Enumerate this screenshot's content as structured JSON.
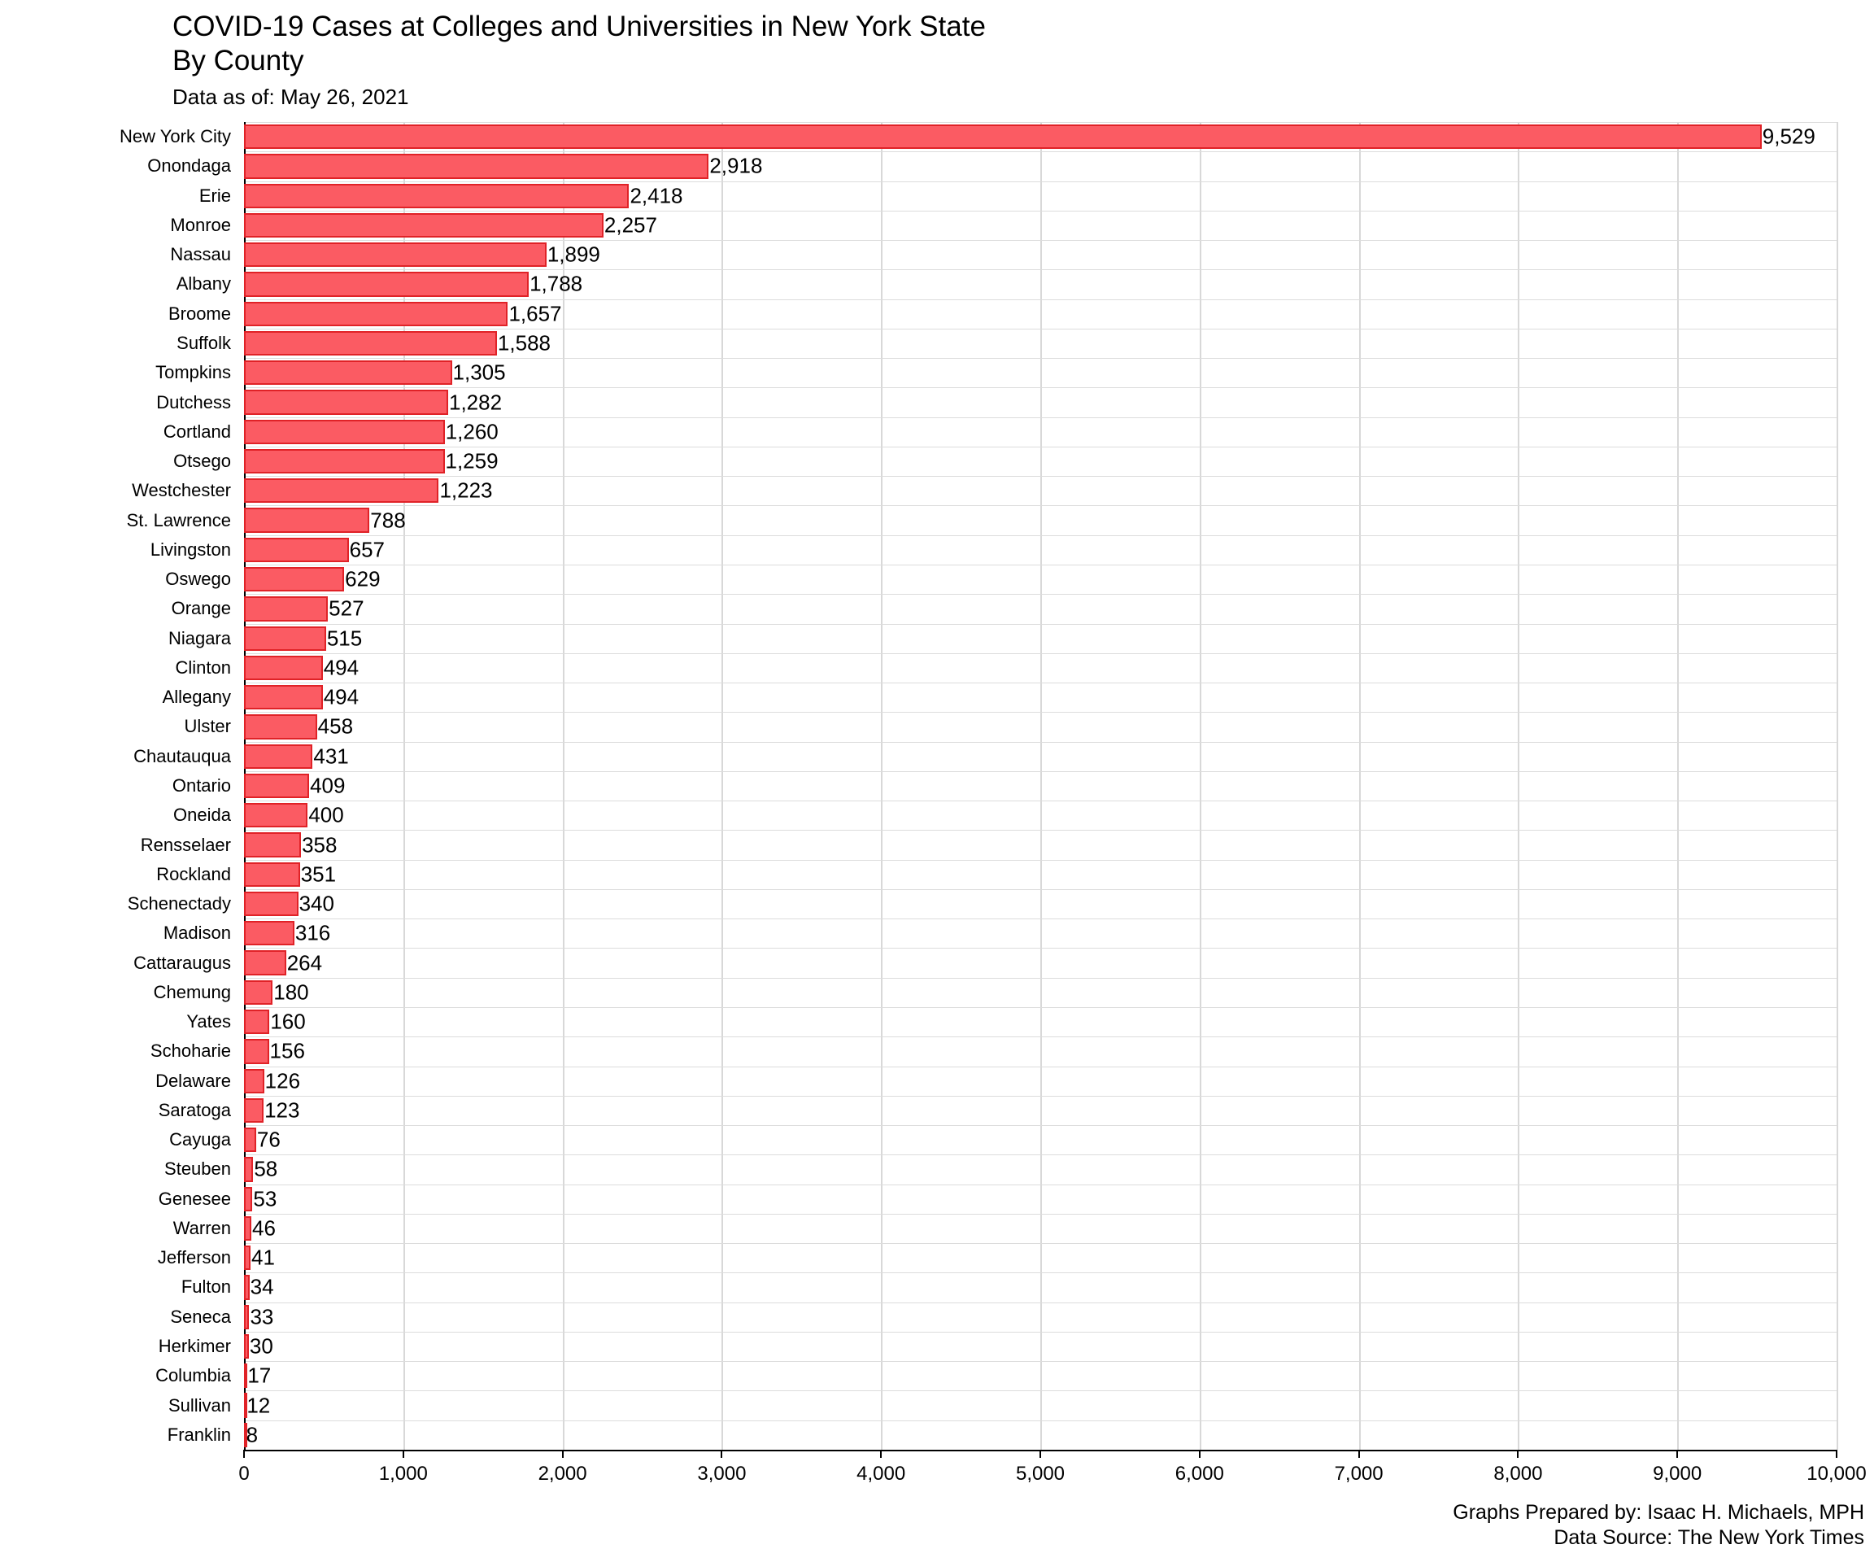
{
  "header": {
    "title": "COVID-19 Cases at Colleges and Universities in New York State",
    "subtitle": "By County",
    "data_as_of": "Data as of: May 26, 2021"
  },
  "footer": {
    "prepared_by": "Graphs Prepared by: Isaac H. Michaels, MPH",
    "source": "Data Source: The New York Times"
  },
  "chart_data": {
    "type": "bar",
    "orientation": "horizontal",
    "title": "COVID-19 Cases at Colleges and Universities in New York State",
    "subtitle": "By County",
    "note": "Data as of: May 26, 2021",
    "xlabel": "",
    "ylabel": "",
    "xlim": [
      0,
      10000
    ],
    "x_ticks": [
      0,
      1000,
      2000,
      3000,
      4000,
      5000,
      6000,
      7000,
      8000,
      9000,
      10000
    ],
    "grid": true,
    "legend": "none",
    "value_labels": true,
    "bar_fill": "#fb5b63",
    "bar_border": "#e02227",
    "categories": [
      "New York City",
      "Onondaga",
      "Erie",
      "Monroe",
      "Nassau",
      "Albany",
      "Broome",
      "Suffolk",
      "Tompkins",
      "Dutchess",
      "Cortland",
      "Otsego",
      "Westchester",
      "St. Lawrence",
      "Livingston",
      "Oswego",
      "Orange",
      "Niagara",
      "Clinton",
      "Allegany",
      "Ulster",
      "Chautauqua",
      "Ontario",
      "Oneida",
      "Rensselaer",
      "Rockland",
      "Schenectady",
      "Madison",
      "Cattaraugus",
      "Chemung",
      "Yates",
      "Schoharie",
      "Delaware",
      "Saratoga",
      "Cayuga",
      "Steuben",
      "Genesee",
      "Warren",
      "Jefferson",
      "Fulton",
      "Seneca",
      "Herkimer",
      "Columbia",
      "Sullivan",
      "Franklin"
    ],
    "values": [
      9529,
      2918,
      2418,
      2257,
      1899,
      1788,
      1657,
      1588,
      1305,
      1282,
      1260,
      1259,
      1223,
      788,
      657,
      629,
      527,
      515,
      494,
      494,
      458,
      431,
      409,
      400,
      358,
      351,
      340,
      316,
      264,
      180,
      160,
      156,
      126,
      123,
      76,
      58,
      53,
      46,
      41,
      34,
      33,
      30,
      17,
      12,
      8
    ]
  }
}
